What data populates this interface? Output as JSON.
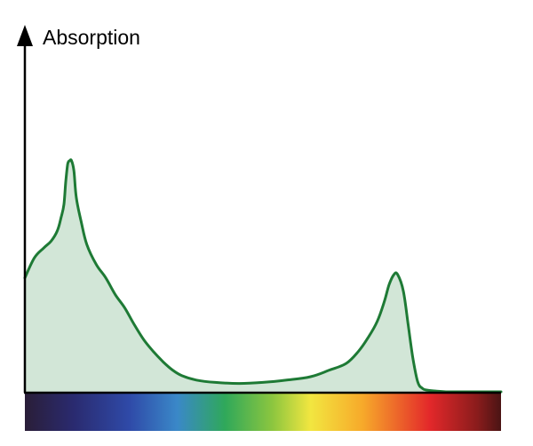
{
  "chart_data": {
    "type": "area",
    "title": "",
    "xlabel": "",
    "ylabel": "Absorption",
    "xlim": [
      0,
      100
    ],
    "ylim": [
      0,
      100
    ],
    "grid": false,
    "legend": "none",
    "colors": {
      "line": "#1e7a35",
      "fill": "#d2e6d7",
      "axis": "#000000"
    },
    "spectrum_bar": {
      "description_colors": [
        "#2a1e38",
        "#2a2a6e",
        "#2f4aa8",
        "#3a88c8",
        "#2fa85a",
        "#8cc63f",
        "#f2e640",
        "#f7a92a",
        "#e3282a",
        "#8a1c1c",
        "#4a1414"
      ],
      "stops": [
        0,
        10,
        22,
        32,
        42,
        52,
        60,
        71,
        85,
        95,
        100
      ]
    },
    "series": [
      {
        "x": [
          0,
          2,
          4,
          5.5,
          6.8,
          7.6,
          8.2,
          8.6,
          9.0,
          9.4,
          9.8,
          10.3,
          10.8,
          11.8,
          13,
          15,
          17,
          19,
          21,
          23,
          25,
          27,
          29,
          31,
          33,
          36,
          40,
          45,
          50,
          55,
          60,
          64,
          67.5,
          70,
          72,
          74,
          75.5,
          76.5,
          77.5,
          78.3,
          79.5,
          80.5,
          81.5,
          82.5,
          83.5,
          84.5,
          86.5,
          89,
          92,
          95,
          97.5,
          100
        ],
        "y": [
          34,
          40,
          43,
          45,
          48,
          52,
          56,
          63,
          68,
          69,
          69,
          66,
          58,
          51,
          44,
          38,
          34,
          29,
          25,
          20,
          15.5,
          12,
          9,
          6.5,
          4.8,
          3.5,
          2.8,
          2.5,
          2.8,
          3.5,
          4.5,
          6.5,
          8.5,
          12,
          16,
          21,
          27,
          32,
          35,
          35,
          30,
          20,
          10,
          3,
          1,
          0.5,
          0.2,
          0,
          0,
          0,
          0,
          0
        ]
      }
    ]
  }
}
